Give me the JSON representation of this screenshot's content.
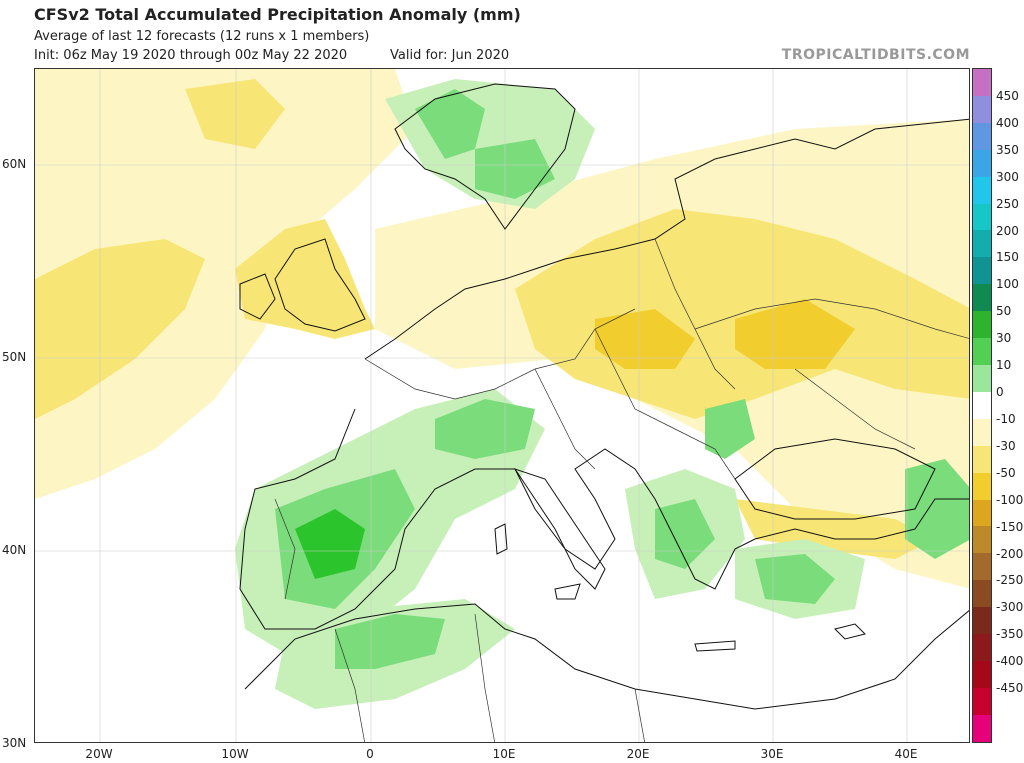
{
  "header": {
    "title": "CFSv2 Total Accumulated Precipitation Anomaly (mm)",
    "subtitle": "Average of last 12 forecasts (12 runs x 1 members)",
    "init": "Init: 06z May 19 2020 through 00z May 22 2020",
    "valid": "Valid for: Jun 2020",
    "brand": "TROPICALTIDBITS.COM"
  },
  "axes": {
    "lat_labels": [
      "60N",
      "50N",
      "40N",
      "30N"
    ],
    "lon_labels": [
      "20W",
      "10W",
      "0",
      "10E",
      "20E",
      "30E",
      "40E"
    ]
  },
  "colorbar": {
    "labels": [
      "450",
      "400",
      "350",
      "300",
      "250",
      "200",
      "150",
      "100",
      "50",
      "30",
      "10",
      "0",
      "-10",
      "-30",
      "-50",
      "-100",
      "-150",
      "-200",
      "-250",
      "-300",
      "-350",
      "-400",
      "-450"
    ],
    "colors": [
      "#c471c4",
      "#8f8fde",
      "#5f97e3",
      "#3aa6e6",
      "#22c6ea",
      "#17c7c7",
      "#13adad",
      "#0f9393",
      "#0f8a50",
      "#2cb52c",
      "#53cf53",
      "#9ae69a",
      "#ffffff",
      "#fdf6c4",
      "#f7e675",
      "#f1cd2e",
      "#dca61e",
      "#bd8a2a",
      "#a26a2d",
      "#8a4a22",
      "#7a2a1a",
      "#8c1a1a",
      "#a6081a",
      "#c8002e",
      "#e6007a"
    ]
  },
  "map_regions": {
    "anomaly_colors": {
      "light_yellow": "#fdf6c4",
      "yellow": "#f7e675",
      "dark_yellow": "#f1cd2e",
      "light_green": "#c6f0b8",
      "mid_green": "#7bdc7b",
      "green": "#2cc42c"
    }
  }
}
